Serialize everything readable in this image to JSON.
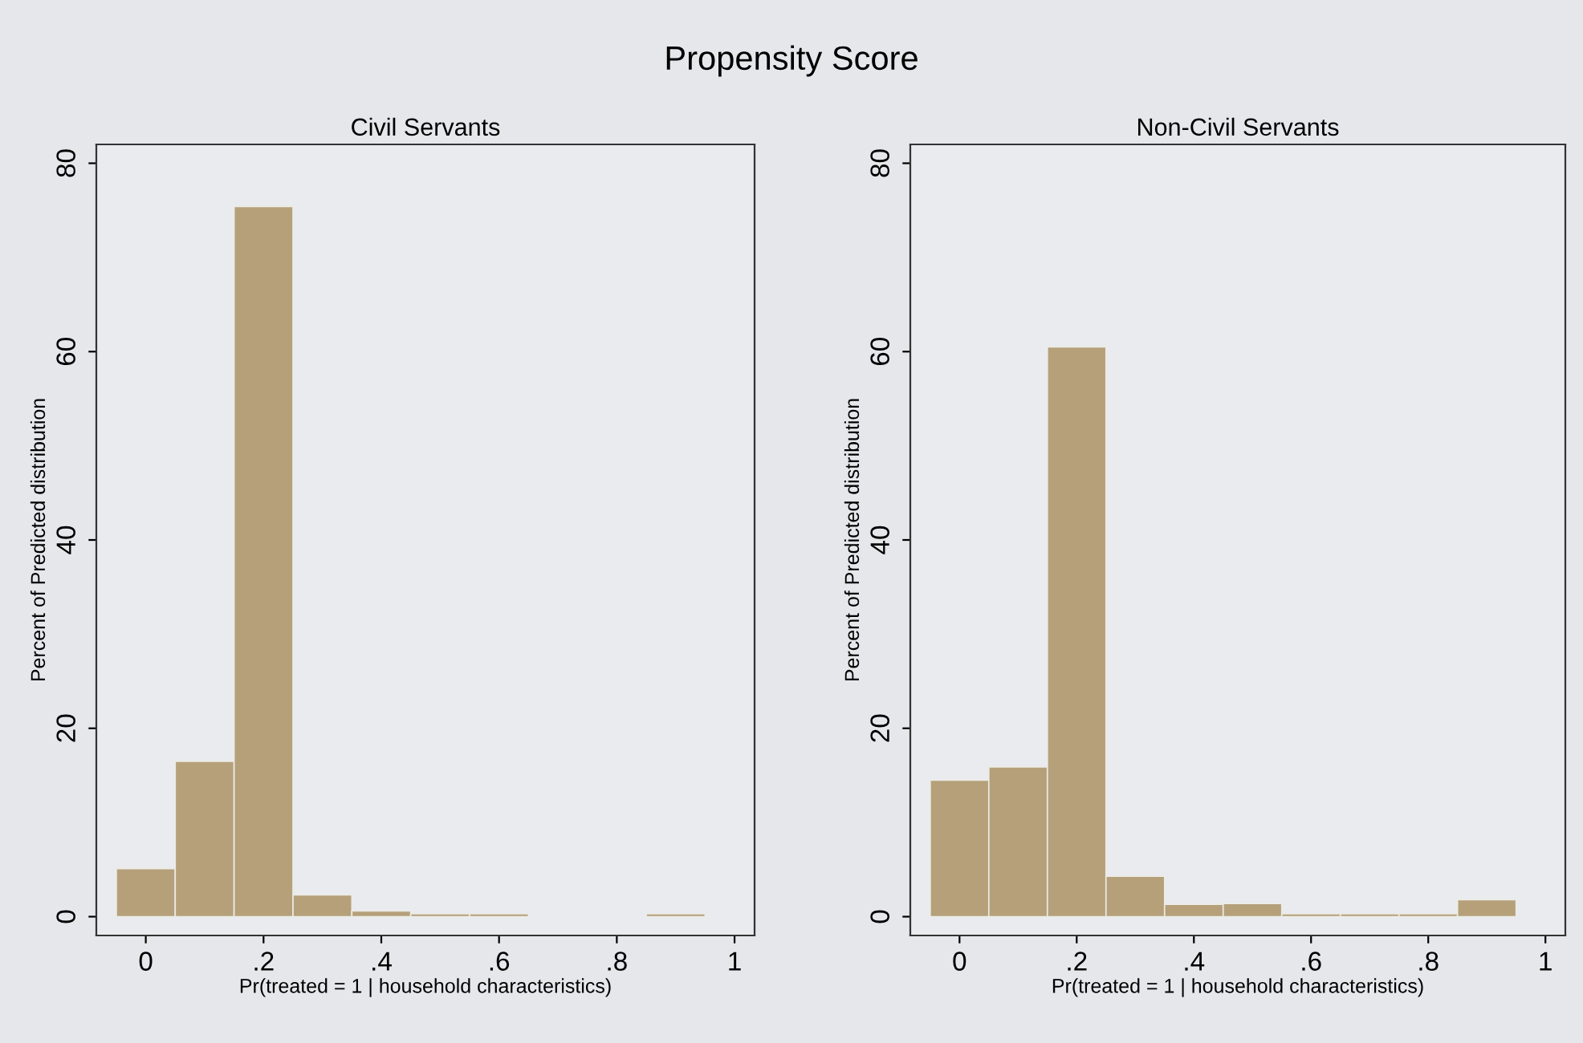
{
  "chart_data": [
    {
      "type": "histogram",
      "title": "Civil Servants",
      "annotations": [
        "Propensity Score"
      ],
      "xlabel": "Pr(treated = 1 | household characteristics)",
      "ylabel": "Percent of Predicted distribution",
      "bins": [
        -0.05,
        0.05,
        0.15,
        0.25,
        0.35,
        0.45,
        0.55,
        0.65,
        0.75,
        0.85,
        0.95
      ],
      "values": [
        5.1,
        16.5,
        75.4,
        2.3,
        0.6,
        0.3,
        0.3,
        0,
        0,
        0.3
      ],
      "color": "#b5a07a",
      "xlim": [
        -0.084,
        1.034
      ],
      "ylim": [
        -2,
        82
      ],
      "xticks": [
        0,
        {
          "value": 0.2,
          "label": ".2"
        },
        {
          "value": 0.4,
          "label": ".4"
        },
        {
          "value": 0.6,
          "label": ".6"
        },
        {
          "value": 0.8,
          "label": ".8"
        },
        1
      ],
      "yticks": [
        0,
        20,
        40,
        60,
        80
      ],
      "grid": false,
      "legend": false
    },
    {
      "type": "histogram",
      "title": "Non-Civil Servants",
      "xlabel": "Pr(treated = 1 | household characteristics)",
      "ylabel": "Percent of Predicted distribution",
      "bins": [
        -0.05,
        0.05,
        0.15,
        0.25,
        0.35,
        0.45,
        0.55,
        0.65,
        0.75,
        0.85,
        0.95
      ],
      "values": [
        14.5,
        15.9,
        60.5,
        4.3,
        1.3,
        1.4,
        0.3,
        0.3,
        0.3,
        1.8
      ],
      "color": "#b5a07a",
      "xlim": [
        -0.084,
        1.034
      ],
      "ylim": [
        -2,
        82
      ],
      "xticks": [
        0,
        {
          "value": 0.2,
          "label": ".2"
        },
        {
          "value": 0.4,
          "label": ".4"
        },
        {
          "value": 0.6,
          "label": ".6"
        },
        {
          "value": 0.8,
          "label": ".8"
        },
        1
      ],
      "yticks": [
        0,
        20,
        40,
        60,
        80
      ],
      "grid": false,
      "legend": false
    }
  ]
}
